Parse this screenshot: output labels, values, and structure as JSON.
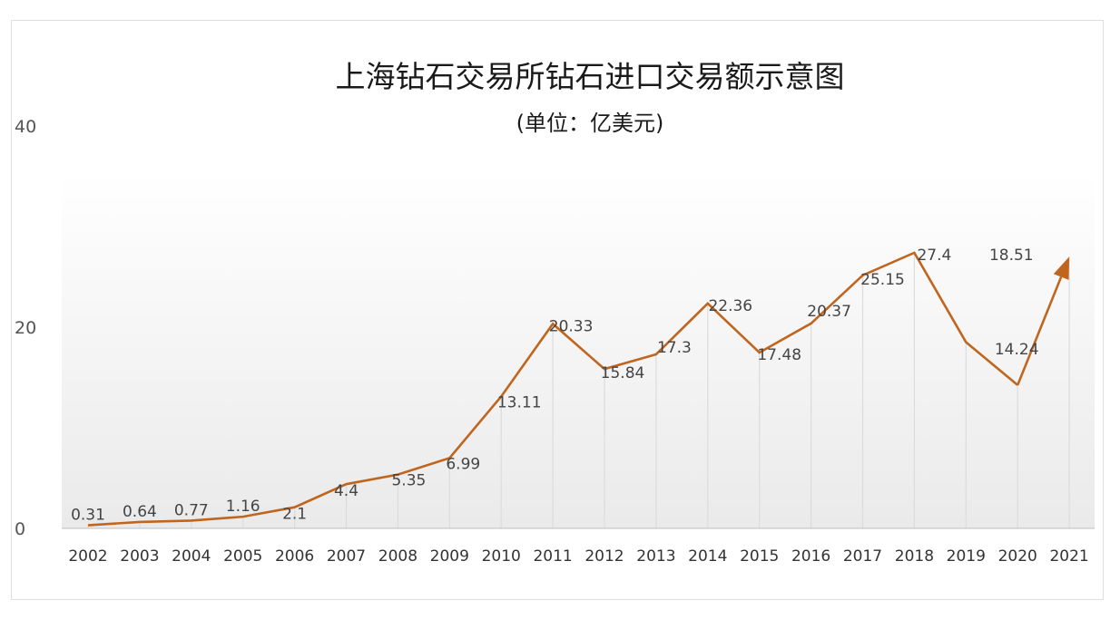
{
  "chart_data": {
    "type": "line",
    "title": "上海钻石交易所钻石进口交易额示意图",
    "subtitle": "(单位：亿美元)",
    "xlabel": "",
    "ylabel": "",
    "ylim": [
      0,
      40
    ],
    "yticks": [
      "0",
      "20",
      "40"
    ],
    "categories": [
      "2002",
      "2003",
      "2004",
      "2005",
      "2006",
      "2007",
      "2008",
      "2009",
      "2010",
      "2011",
      "2012",
      "2013",
      "2014",
      "2015",
      "2016",
      "2017",
      "2018",
      "2019",
      "2020",
      "2021"
    ],
    "values": [
      0.31,
      0.64,
      0.77,
      1.16,
      2.1,
      4.4,
      5.35,
      6.99,
      13.11,
      20.33,
      15.84,
      17.3,
      22.36,
      17.48,
      20.37,
      25.15,
      27.4,
      18.51,
      14.24,
      27.0
    ],
    "data_labels": [
      "0.31",
      "0.64",
      "0.77",
      "1.16",
      "2.1",
      "4.4",
      "5.35",
      "6.99",
      "13.11",
      "20.33",
      "15.84",
      "17.3",
      "22.36",
      "17.48",
      "20.37",
      "25.15",
      "27.4",
      "18.51",
      "14.24",
      ""
    ],
    "series_color": "#C0651E",
    "grid": "vertical",
    "legend": "none",
    "final_point_arrow": true
  }
}
